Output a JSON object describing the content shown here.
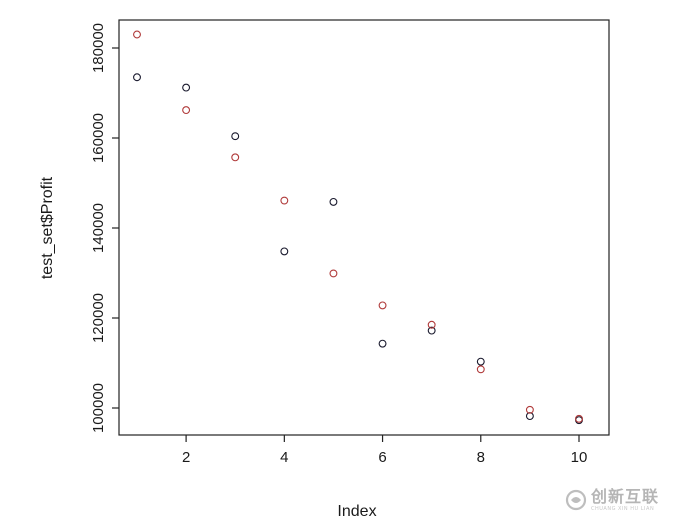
{
  "chart_data": {
    "type": "scatter",
    "xlabel": "Index",
    "ylabel": "test_set$Profit",
    "xlim": [
      1,
      10
    ],
    "ylim": [
      96000,
      185000
    ],
    "x_ticks": [
      "2",
      "4",
      "6",
      "8",
      "10"
    ],
    "y_ticks": [
      "100000",
      "120000",
      "140000",
      "160000",
      "180000"
    ],
    "grid": false,
    "series": [
      {
        "color": "#1a1a2e",
        "x": [
          1,
          2,
          3,
          4,
          5,
          6,
          7,
          8,
          9,
          10
        ],
        "y": [
          173500,
          171200,
          160400,
          134800,
          145800,
          114300,
          117200,
          110300,
          98200,
          97300
        ]
      },
      {
        "color": "#b03a3a",
        "x": [
          1,
          2,
          3,
          4,
          5,
          6,
          7,
          8,
          9,
          10
        ],
        "y": [
          183000,
          166200,
          155700,
          146100,
          129900,
          122800,
          118500,
          108600,
          99600,
          97600
        ]
      }
    ]
  },
  "watermark": {
    "text": "创新互联",
    "subtext": "CHUANG XIN HU LIAN",
    "icon": "swirl-logo-icon"
  }
}
